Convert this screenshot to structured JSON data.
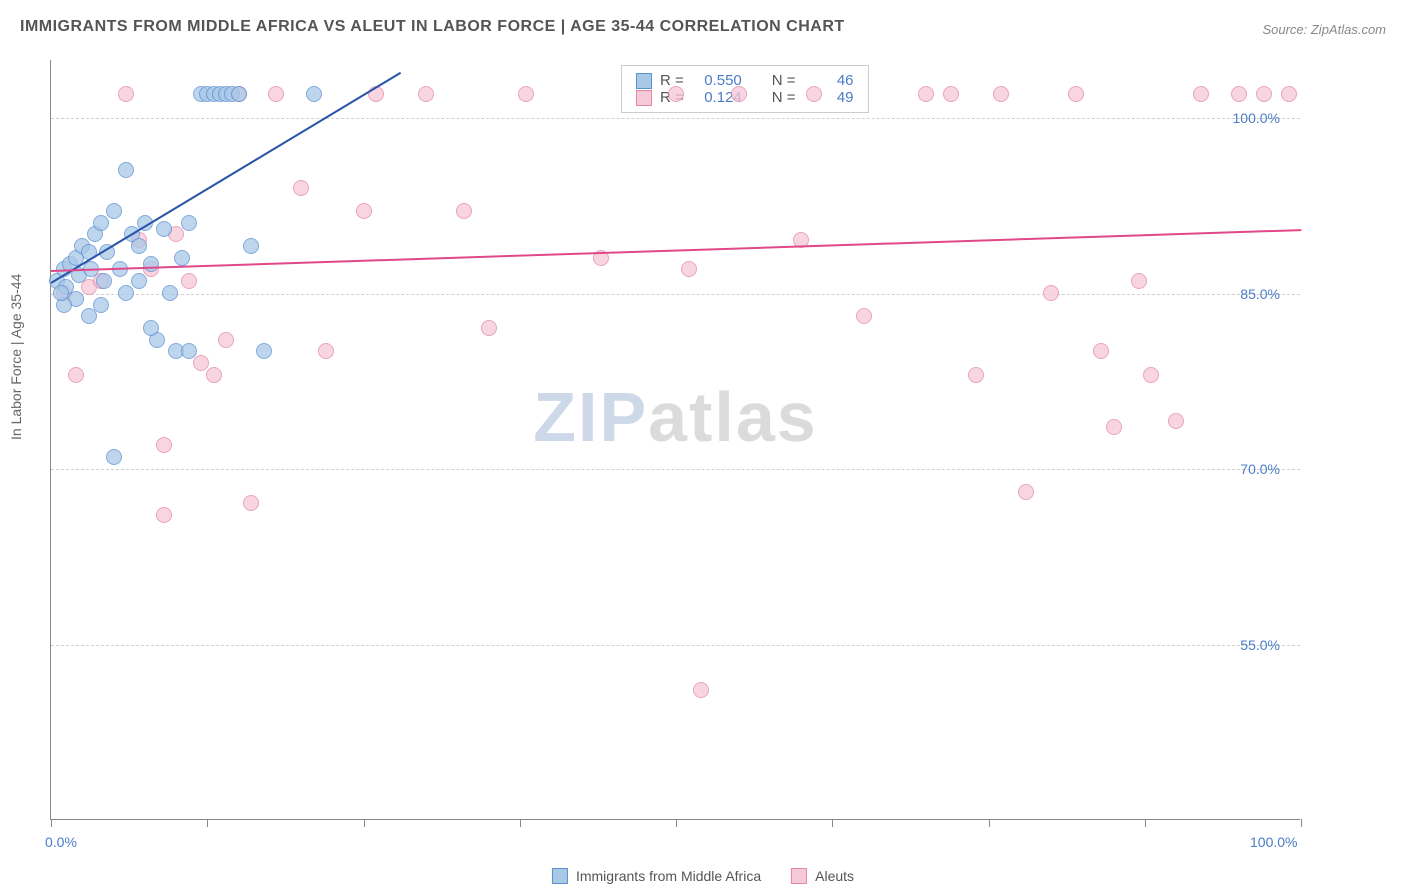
{
  "title": "IMMIGRANTS FROM MIDDLE AFRICA VS ALEUT IN LABOR FORCE | AGE 35-44 CORRELATION CHART",
  "source": "Source: ZipAtlas.com",
  "ylabel": "In Labor Force | Age 35-44",
  "watermark_zip": "ZIP",
  "watermark_rest": "atlas",
  "chart": {
    "type": "scatter",
    "xlim": [
      0,
      100
    ],
    "ylim": [
      40,
      105
    ],
    "xtick_labels": {
      "0": "0.0%",
      "100": "100.0%"
    },
    "xtick_positions": [
      0,
      12.5,
      25,
      37.5,
      50,
      62.5,
      75,
      87.5,
      100
    ],
    "ytick_positions": [
      55,
      70,
      85,
      100
    ],
    "ytick_labels": {
      "55": "55.0%",
      "70": "70.0%",
      "85": "85.0%",
      "100": "100.0%"
    },
    "grid_color": "#d8d8d8",
    "background_color": "#ffffff",
    "marker_radius": 8,
    "series": {
      "blue": {
        "name": "Immigants from Middle Africa",
        "legend_label": "Immigrants from Middle Africa",
        "fill": "#a8c8e8",
        "stroke": "#5a8fd0",
        "line_color": "#2853a8",
        "R": "0.550",
        "N": "46",
        "trend": {
          "x1": 0,
          "y1": 86,
          "x2": 28,
          "y2": 104
        },
        "points": [
          [
            0.5,
            86
          ],
          [
            1,
            87
          ],
          [
            1.2,
            85.5
          ],
          [
            1.5,
            87.5
          ],
          [
            2,
            88
          ],
          [
            2.2,
            86.5
          ],
          [
            2.5,
            89
          ],
          [
            3,
            88.5
          ],
          [
            3.2,
            87
          ],
          [
            3.5,
            90
          ],
          [
            4,
            91
          ],
          [
            4.2,
            86
          ],
          [
            4.5,
            88.5
          ],
          [
            5,
            92
          ],
          [
            5.5,
            87
          ],
          [
            6,
            95.5
          ],
          [
            6.5,
            90
          ],
          [
            7,
            89
          ],
          [
            7.5,
            91
          ],
          [
            8,
            87.5
          ],
          [
            8.5,
            81
          ],
          [
            9,
            90.5
          ],
          [
            9.5,
            85
          ],
          [
            10,
            80
          ],
          [
            10.5,
            88
          ],
          [
            11,
            91
          ],
          [
            12,
            102
          ],
          [
            12.5,
            102
          ],
          [
            13,
            102
          ],
          [
            13.5,
            102
          ],
          [
            14,
            102
          ],
          [
            14.5,
            102
          ],
          [
            15,
            102
          ],
          [
            16,
            89
          ],
          [
            17,
            80
          ],
          [
            5,
            71
          ],
          [
            3,
            83
          ],
          [
            4,
            84
          ],
          [
            2,
            84.5
          ],
          [
            1,
            84
          ],
          [
            0.8,
            85
          ],
          [
            6,
            85
          ],
          [
            7,
            86
          ],
          [
            8,
            82
          ],
          [
            11,
            80
          ],
          [
            21,
            102
          ]
        ]
      },
      "pink": {
        "name": "Aleuts",
        "legend_label": "Aleuts",
        "fill": "#f7c8d8",
        "stroke": "#e088a8",
        "line_color": "#e04888",
        "R": "0.124",
        "N": "49",
        "trend": {
          "x1": 0,
          "y1": 87,
          "x2": 100,
          "y2": 90.5
        },
        "points": [
          [
            1,
            85
          ],
          [
            2,
            78
          ],
          [
            3,
            85.5
          ],
          [
            4,
            86
          ],
          [
            6,
            102
          ],
          [
            7,
            89.5
          ],
          [
            8,
            87
          ],
          [
            9,
            72
          ],
          [
            9,
            66
          ],
          [
            10,
            90
          ],
          [
            11,
            86
          ],
          [
            12,
            79
          ],
          [
            13,
            78
          ],
          [
            14,
            81
          ],
          [
            15,
            102
          ],
          [
            16,
            67
          ],
          [
            18,
            102
          ],
          [
            20,
            94
          ],
          [
            22,
            80
          ],
          [
            25,
            92
          ],
          [
            26,
            102
          ],
          [
            30,
            102
          ],
          [
            33,
            92
          ],
          [
            35,
            82
          ],
          [
            38,
            102
          ],
          [
            44,
            88
          ],
          [
            50,
            102
          ],
          [
            51,
            87
          ],
          [
            52,
            51
          ],
          [
            55,
            102
          ],
          [
            60,
            89.5
          ],
          [
            61,
            102
          ],
          [
            65,
            83
          ],
          [
            70,
            102
          ],
          [
            72,
            102
          ],
          [
            74,
            78
          ],
          [
            76,
            102
          ],
          [
            78,
            68
          ],
          [
            80,
            85
          ],
          [
            82,
            102
          ],
          [
            84,
            80
          ],
          [
            85,
            73.5
          ],
          [
            87,
            86
          ],
          [
            88,
            78
          ],
          [
            90,
            74
          ],
          [
            92,
            102
          ],
          [
            95,
            102
          ],
          [
            97,
            102
          ],
          [
            99,
            102
          ]
        ]
      }
    }
  },
  "stats_box": {
    "rows": [
      {
        "series": "blue",
        "R_label": "R =",
        "N_label": "N ="
      },
      {
        "series": "pink",
        "R_label": "R =",
        "N_label": "N ="
      }
    ]
  }
}
